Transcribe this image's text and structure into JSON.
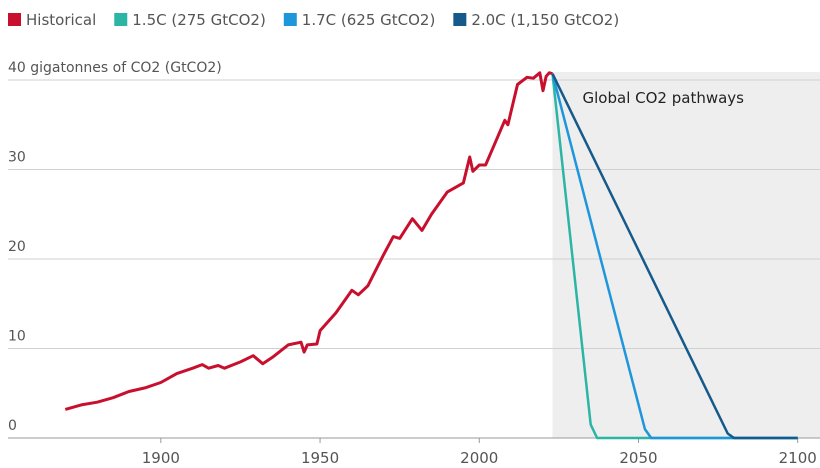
{
  "chart_data": {
    "type": "line",
    "annotation": "Global CO2 pathways",
    "xlim": [
      1852,
      2107
    ],
    "xticks": [
      1900,
      1950,
      2000,
      2050,
      2100
    ],
    "ylim": [
      0,
      40
    ],
    "yticks": [
      0,
      10,
      20,
      30,
      {
        "value": 40,
        "label": "40 gigatonnes of CO2 (GtCO2)"
      }
    ],
    "grid": true,
    "legend": "top",
    "series": [
      {
        "name": "Historical",
        "color": "#c8102e",
        "x": [
          1870,
          1875,
          1880,
          1885,
          1890,
          1895,
          1900,
          1905,
          1910,
          1913,
          1915,
          1918,
          1920,
          1925,
          1929,
          1932,
          1935,
          1940,
          1944,
          1945,
          1946,
          1949,
          1950,
          1955,
          1960,
          1962,
          1965,
          1970,
          1973,
          1975,
          1979,
          1982,
          1985,
          1990,
          1995,
          1997,
          1998,
          2000,
          2002,
          2005,
          2008,
          2009,
          2010,
          2012,
          2015,
          2017,
          2019,
          2020,
          2021,
          2022,
          2023
        ],
        "values": [
          3.2,
          3.7,
          4.0,
          4.5,
          5.2,
          5.6,
          6.2,
          7.2,
          7.8,
          8.2,
          7.8,
          8.1,
          7.8,
          8.5,
          9.2,
          8.3,
          9.0,
          10.4,
          10.7,
          9.6,
          10.4,
          10.5,
          12.0,
          14.0,
          16.5,
          16.0,
          17.0,
          20.5,
          22.5,
          22.3,
          24.5,
          23.2,
          25.0,
          27.5,
          28.5,
          31.4,
          29.8,
          30.5,
          30.5,
          33.0,
          35.5,
          35.0,
          36.5,
          39.5,
          40.3,
          40.2,
          40.8,
          38.8,
          40.4,
          40.8,
          40.7
        ]
      },
      {
        "name": "1.5C (275 GtCO2)",
        "color": "#2bb5a5",
        "x": [
          2023,
          2035,
          2037,
          2100
        ],
        "values": [
          40.7,
          1.5,
          0,
          0
        ]
      },
      {
        "name": "1.7C (625 GtCO2)",
        "color": "#1e96dc",
        "x": [
          2023,
          2052,
          2054,
          2100
        ],
        "values": [
          40.7,
          1.0,
          0,
          0
        ]
      },
      {
        "name": "2.0C (1,150 GtCO2)",
        "color": "#155a8a",
        "x": [
          2023,
          2078,
          2080,
          2100
        ],
        "values": [
          40.7,
          0.5,
          0,
          0
        ]
      }
    ]
  }
}
